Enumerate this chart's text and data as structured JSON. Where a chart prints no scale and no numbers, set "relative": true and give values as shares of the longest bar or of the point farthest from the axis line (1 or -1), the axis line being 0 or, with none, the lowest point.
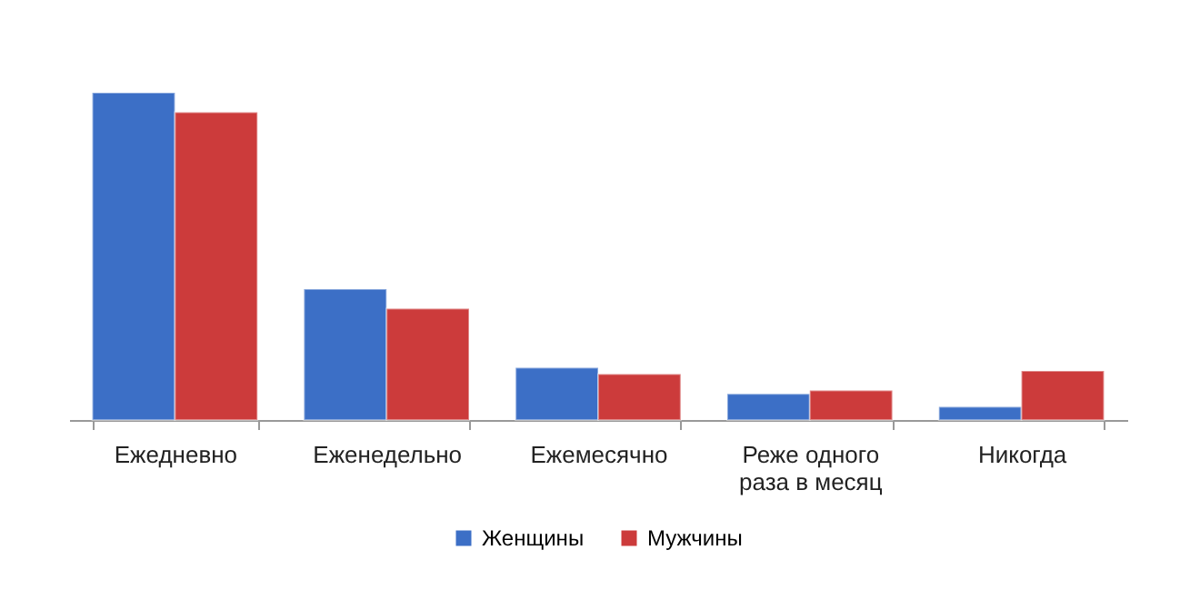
{
  "chart_data": {
    "type": "bar",
    "relative": true,
    "categories": [
      "Ежедневно",
      "Еженедельно",
      "Ежемесячно",
      "Реже одного раза в месяц",
      "Никогда"
    ],
    "series": [
      {
        "name": "Женщины",
        "color": "#3c6fc6",
        "values": [
          1,
          0.4,
          0.16,
          0.08,
          0.04
        ]
      },
      {
        "name": "Мужчины",
        "color": "#cc3b3b",
        "values": [
          0.94,
          0.34,
          0.14,
          0.09,
          0.15
        ]
      }
    ],
    "legend": "bottom"
  }
}
